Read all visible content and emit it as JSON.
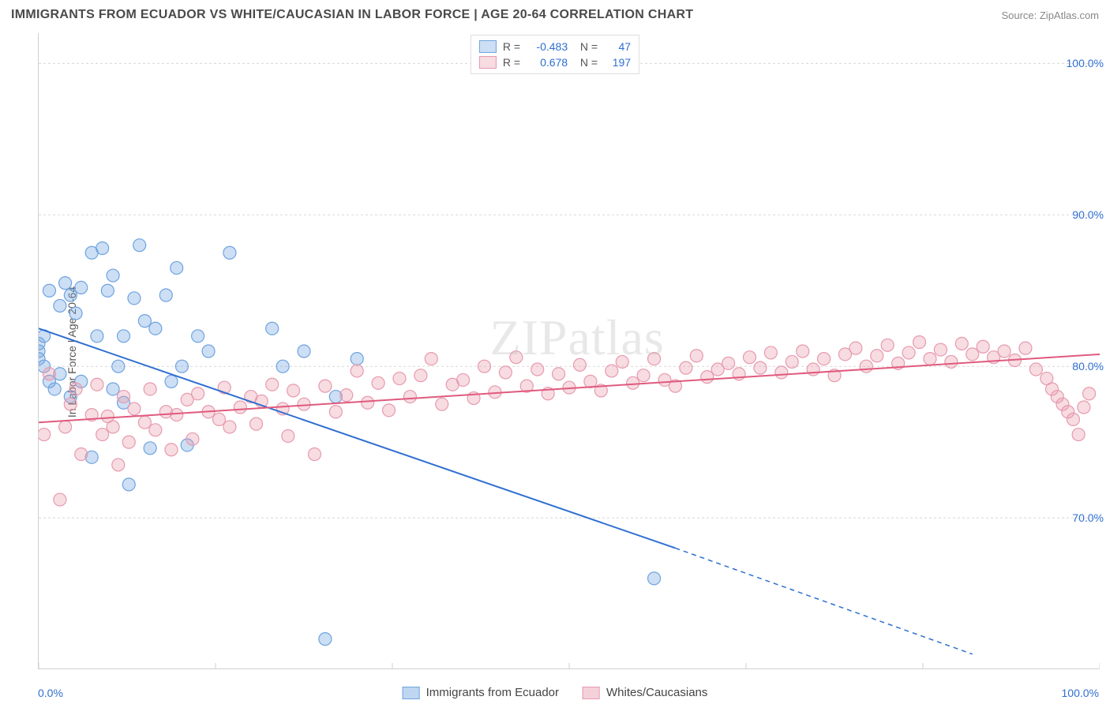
{
  "title": "IMMIGRANTS FROM ECUADOR VS WHITE/CAUCASIAN IN LABOR FORCE | AGE 20-64 CORRELATION CHART",
  "source": "Source: ZipAtlas.com",
  "watermark": "ZIPatlas",
  "ylabel": "In Labor Force | Age 20-64",
  "chart": {
    "type": "scatter",
    "xlim": [
      0,
      100
    ],
    "ylim": [
      60,
      102
    ],
    "yticks": [
      70,
      80,
      90,
      100
    ],
    "ytick_labels": [
      "70.0%",
      "80.0%",
      "90.0%",
      "100.0%"
    ],
    "xticks": [
      0,
      16.67,
      33.33,
      50,
      66.67,
      83.33,
      100
    ],
    "x_start_label": "0.0%",
    "x_end_label": "100.0%",
    "background_color": "#ffffff",
    "grid_color": "#d8d8d8",
    "series": [
      {
        "name": "Immigrants from Ecuador",
        "marker_color": "#6fa3e0",
        "marker_fill": "rgba(111,163,224,0.35)",
        "marker_radius": 8,
        "line_color": "#2f6fd0",
        "line_width": 2,
        "R": "-0.483",
        "N": "47",
        "trend": {
          "x1": 0,
          "y1": 82.5,
          "x2": 60,
          "y2": 68,
          "x1_solid": 0,
          "y1_solid": 82.5,
          "x2_solid": 60,
          "y2_solid": 68,
          "x2_dash": 88,
          "y2_dash": 61
        },
        "points": [
          [
            0,
            81
          ],
          [
            0,
            80.5
          ],
          [
            0,
            81.5
          ],
          [
            0.5,
            80
          ],
          [
            0.5,
            82
          ],
          [
            1,
            79
          ],
          [
            1,
            85
          ],
          [
            1.5,
            78.5
          ],
          [
            2,
            84
          ],
          [
            2,
            79.5
          ],
          [
            2.5,
            85.5
          ],
          [
            3,
            84.7
          ],
          [
            3,
            78
          ],
          [
            3.5,
            83.5
          ],
          [
            4,
            85.2
          ],
          [
            4,
            79
          ],
          [
            5,
            87.5
          ],
          [
            5,
            74
          ],
          [
            5.5,
            82
          ],
          [
            6,
            87.8
          ],
          [
            6.5,
            85
          ],
          [
            7,
            86
          ],
          [
            7,
            78.5
          ],
          [
            7.5,
            80
          ],
          [
            8,
            82
          ],
          [
            8,
            77.6
          ],
          [
            8.5,
            72.2
          ],
          [
            9,
            84.5
          ],
          [
            9.5,
            88
          ],
          [
            10,
            83
          ],
          [
            10.5,
            74.6
          ],
          [
            11,
            82.5
          ],
          [
            12,
            84.7
          ],
          [
            12.5,
            79
          ],
          [
            13,
            86.5
          ],
          [
            13.5,
            80
          ],
          [
            14,
            74.8
          ],
          [
            15,
            82
          ],
          [
            16,
            81
          ],
          [
            18,
            87.5
          ],
          [
            22,
            82.5
          ],
          [
            23,
            80
          ],
          [
            25,
            81
          ],
          [
            28,
            78
          ],
          [
            30,
            80.5
          ],
          [
            27,
            62
          ],
          [
            58,
            66
          ]
        ]
      },
      {
        "name": "Whites/Caucasians",
        "marker_color": "#e79aad",
        "marker_fill": "rgba(231,154,173,0.35)",
        "marker_radius": 8,
        "line_color": "#e05a7d",
        "line_width": 2,
        "R": "0.678",
        "N": "197",
        "trend": {
          "x1": 0,
          "y1": 76.3,
          "x2": 100,
          "y2": 80.8
        },
        "points": [
          [
            0.5,
            75.5
          ],
          [
            1,
            79.5
          ],
          [
            2,
            71.2
          ],
          [
            2.5,
            76
          ],
          [
            3,
            77.5
          ],
          [
            3.5,
            78.5
          ],
          [
            4,
            74.2
          ],
          [
            5,
            76.8
          ],
          [
            5.5,
            78.8
          ],
          [
            6,
            75.5
          ],
          [
            6.5,
            76.7
          ],
          [
            7,
            76
          ],
          [
            7.5,
            73.5
          ],
          [
            8,
            78
          ],
          [
            8.5,
            75
          ],
          [
            9,
            77.2
          ],
          [
            10,
            76.3
          ],
          [
            10.5,
            78.5
          ],
          [
            11,
            75.8
          ],
          [
            12,
            77
          ],
          [
            12.5,
            74.5
          ],
          [
            13,
            76.8
          ],
          [
            14,
            77.8
          ],
          [
            14.5,
            75.2
          ],
          [
            15,
            78.2
          ],
          [
            16,
            77
          ],
          [
            17,
            76.5
          ],
          [
            17.5,
            78.6
          ],
          [
            18,
            76
          ],
          [
            19,
            77.3
          ],
          [
            20,
            78
          ],
          [
            20.5,
            76.2
          ],
          [
            21,
            77.7
          ],
          [
            22,
            78.8
          ],
          [
            23,
            77.2
          ],
          [
            23.5,
            75.4
          ],
          [
            24,
            78.4
          ],
          [
            25,
            77.5
          ],
          [
            26,
            74.2
          ],
          [
            27,
            78.7
          ],
          [
            28,
            77
          ],
          [
            29,
            78.1
          ],
          [
            30,
            79.7
          ],
          [
            31,
            77.6
          ],
          [
            32,
            78.9
          ],
          [
            33,
            77.1
          ],
          [
            34,
            79.2
          ],
          [
            35,
            78
          ],
          [
            36,
            79.4
          ],
          [
            37,
            80.5
          ],
          [
            38,
            77.5
          ],
          [
            39,
            78.8
          ],
          [
            40,
            79.1
          ],
          [
            41,
            77.9
          ],
          [
            42,
            80
          ],
          [
            43,
            78.3
          ],
          [
            44,
            79.6
          ],
          [
            45,
            80.6
          ],
          [
            46,
            78.7
          ],
          [
            47,
            79.8
          ],
          [
            48,
            78.2
          ],
          [
            49,
            79.5
          ],
          [
            50,
            78.6
          ],
          [
            51,
            80.1
          ],
          [
            52,
            79
          ],
          [
            53,
            78.4
          ],
          [
            54,
            79.7
          ],
          [
            55,
            80.3
          ],
          [
            56,
            78.9
          ],
          [
            57,
            79.4
          ],
          [
            58,
            80.5
          ],
          [
            59,
            79.1
          ],
          [
            60,
            78.7
          ],
          [
            61,
            79.9
          ],
          [
            62,
            80.7
          ],
          [
            63,
            79.3
          ],
          [
            64,
            79.8
          ],
          [
            65,
            80.2
          ],
          [
            66,
            79.5
          ],
          [
            67,
            80.6
          ],
          [
            68,
            79.9
          ],
          [
            69,
            80.9
          ],
          [
            70,
            79.6
          ],
          [
            71,
            80.3
          ],
          [
            72,
            81
          ],
          [
            73,
            79.8
          ],
          [
            74,
            80.5
          ],
          [
            75,
            79.4
          ],
          [
            76,
            80.8
          ],
          [
            77,
            81.2
          ],
          [
            78,
            80
          ],
          [
            79,
            80.7
          ],
          [
            80,
            81.4
          ],
          [
            81,
            80.2
          ],
          [
            82,
            80.9
          ],
          [
            83,
            81.6
          ],
          [
            84,
            80.5
          ],
          [
            85,
            81.1
          ],
          [
            86,
            80.3
          ],
          [
            87,
            81.5
          ],
          [
            88,
            80.8
          ],
          [
            89,
            81.3
          ],
          [
            90,
            80.6
          ],
          [
            91,
            81
          ],
          [
            92,
            80.4
          ],
          [
            93,
            81.2
          ],
          [
            94,
            79.8
          ],
          [
            95,
            79.2
          ],
          [
            95.5,
            78.5
          ],
          [
            96,
            78
          ],
          [
            96.5,
            77.5
          ],
          [
            97,
            77
          ],
          [
            97.5,
            76.5
          ],
          [
            98,
            75.5
          ],
          [
            98.5,
            77.3
          ],
          [
            99,
            78.2
          ]
        ]
      }
    ]
  },
  "legend_bottom": [
    {
      "label": "Immigrants from Ecuador",
      "fill": "rgba(111,163,224,0.45)",
      "stroke": "#6fa3e0"
    },
    {
      "label": "Whites/Caucasians",
      "fill": "rgba(231,154,173,0.45)",
      "stroke": "#e79aad"
    }
  ]
}
